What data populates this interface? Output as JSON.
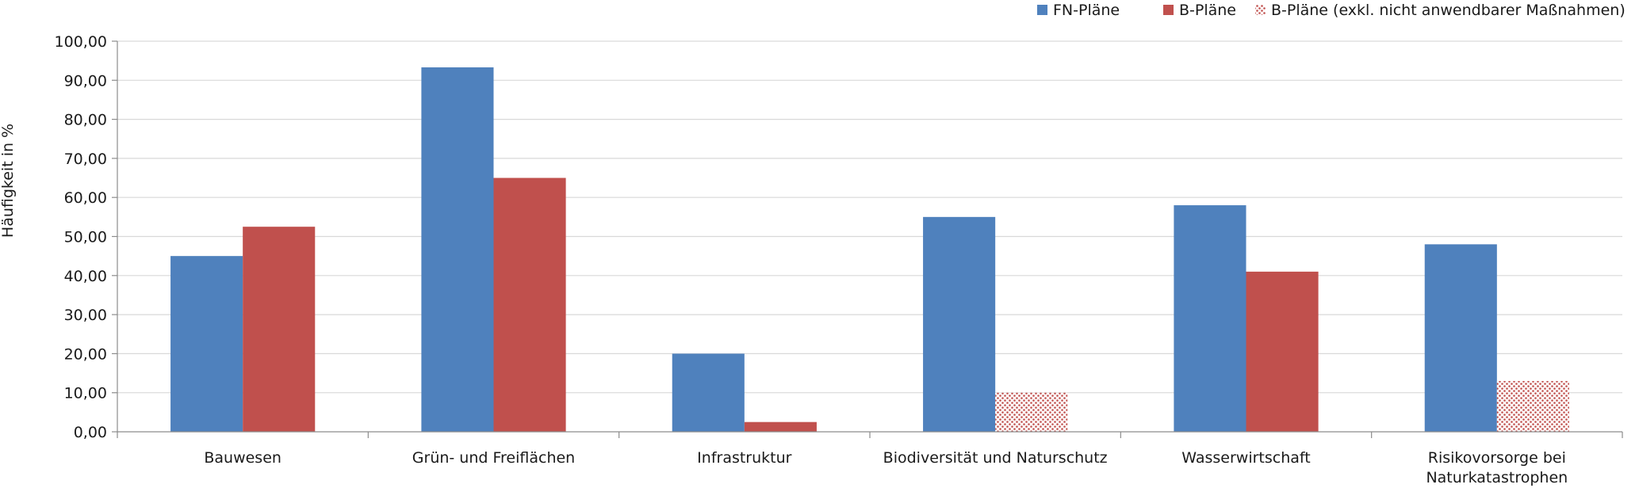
{
  "chart_data": {
    "type": "bar",
    "title": "",
    "xlabel": "",
    "ylabel": "Häufigkeit in %",
    "ylim": [
      0,
      100
    ],
    "y_tick_step": 10,
    "y_tick_labels": [
      "0,00",
      "10,00",
      "20,00",
      "30,00",
      "40,00",
      "50,00",
      "60,00",
      "70,00",
      "80,00",
      "90,00",
      "100,00"
    ],
    "grid": "horizontal",
    "legend_position": "top-right",
    "categories": [
      [
        "Bauwesen"
      ],
      [
        "Grün- und Freiflächen"
      ],
      [
        "Infrastruktur"
      ],
      [
        "Biodiversität und Naturschutz"
      ],
      [
        "Wasserwirtschaft"
      ],
      [
        "Risikovorsorge bei",
        "Naturkatastrophen"
      ]
    ],
    "series": [
      {
        "name": "FN-Pläne",
        "color": "#4f81bd",
        "pattern": "solid",
        "values": [
          45,
          93.3,
          20,
          55,
          58,
          48
        ]
      },
      {
        "name": "B-Pläne",
        "color": "#c0504d",
        "pattern": "solid",
        "values": [
          52.5,
          65,
          2.5,
          null,
          41,
          null
        ]
      },
      {
        "name": "B-Pläne (exkl. nicht anwendbarer Maßnahmen)",
        "color": "#c0504d",
        "pattern": "dotted",
        "values": [
          null,
          null,
          null,
          10,
          null,
          13
        ]
      }
    ]
  }
}
